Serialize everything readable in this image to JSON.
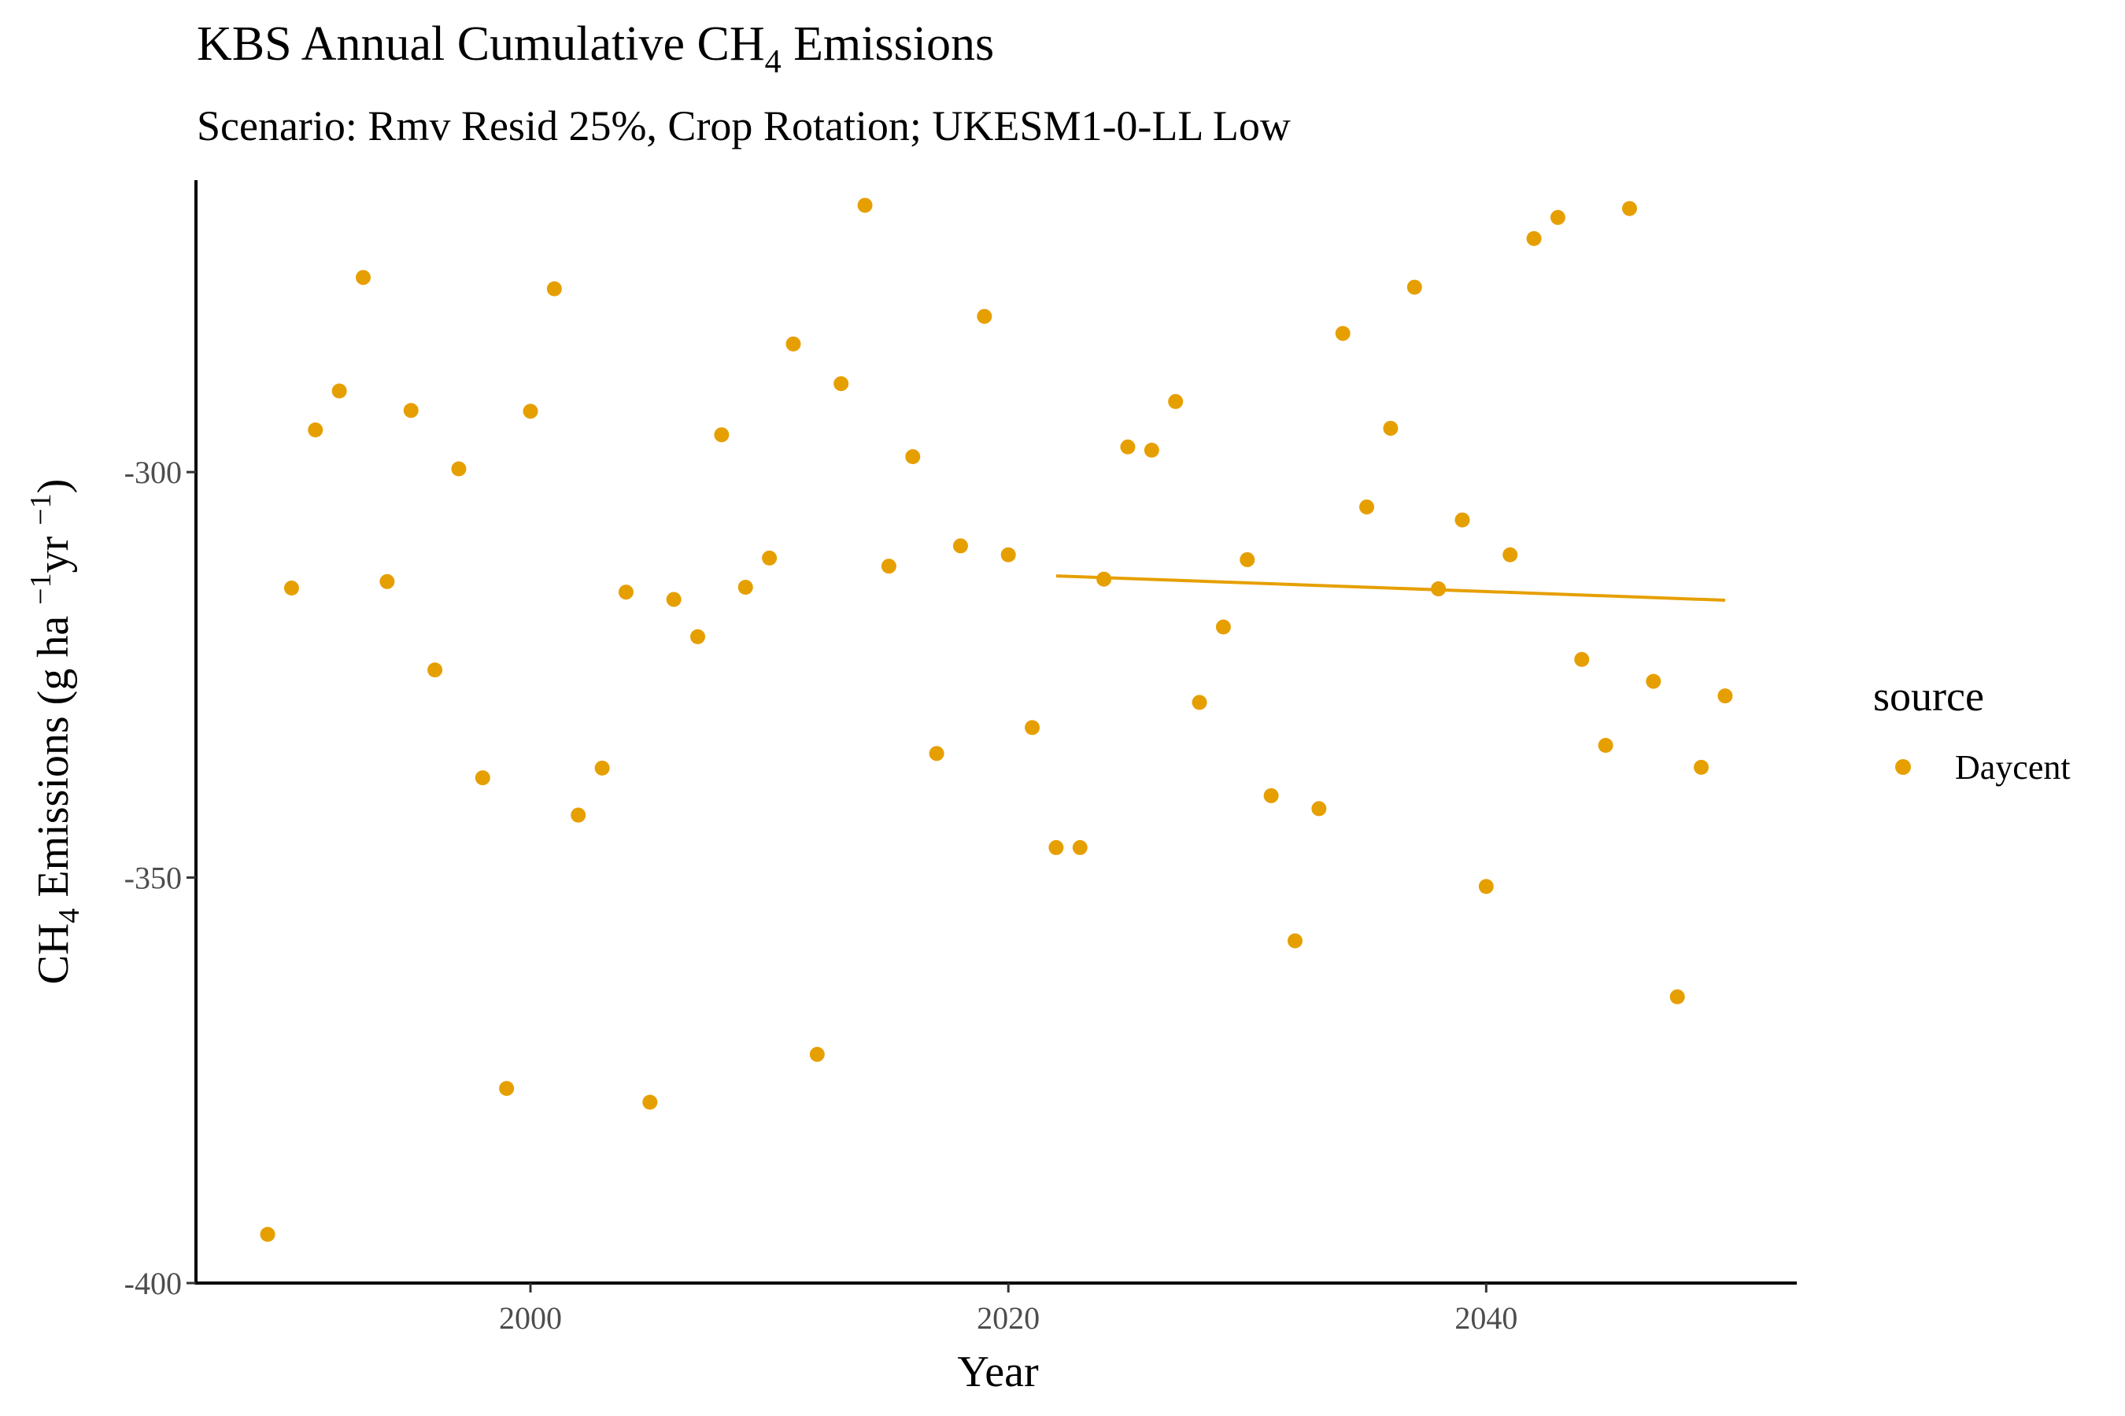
{
  "chart_data": {
    "type": "scatter",
    "title": {
      "prefix": "KBS Annual Cumulative CH",
      "subscript": "4",
      "suffix": " Emissions"
    },
    "subtitle": "Scenario: Rmv Resid 25%, Crop Rotation; UKESM1-0-LL Low",
    "xlabel": "Year",
    "ylabel": {
      "part1": "CH",
      "sub": "4",
      "part2": " Emissions (g ha ",
      "sup1": "−1",
      "part3": "yr ",
      "sup2": "−1",
      "part4": ")"
    },
    "xlim": [
      1986,
      2053
    ],
    "ylim": [
      -400,
      -264
    ],
    "xticks": [
      2000,
      2020,
      2040
    ],
    "yticks": [
      -400,
      -350,
      -300
    ],
    "ytick_labels": [
      "-400",
      "-350",
      "-300"
    ],
    "xtick_labels": [
      "2000",
      "2020",
      "2040"
    ],
    "grid": false,
    "legend": {
      "title": "source",
      "position": "right",
      "entries": [
        {
          "name": "Daycent",
          "color": "#E69F00"
        }
      ]
    },
    "series": [
      {
        "name": "Daycent",
        "color": "#E69F00",
        "x": [
          1989,
          1990,
          1991,
          1992,
          1993,
          1994,
          1995,
          1996,
          1997,
          1998,
          1999,
          2000,
          2001,
          2002,
          2003,
          2004,
          2005,
          2006,
          2007,
          2008,
          2009,
          2010,
          2011,
          2012,
          2013,
          2014,
          2015,
          2016,
          2017,
          2018,
          2019,
          2020,
          2021,
          2022,
          2023,
          2024,
          2025,
          2026,
          2027,
          2028,
          2029,
          2030,
          2031,
          2032,
          2033,
          2034,
          2035,
          2036,
          2037,
          2038,
          2039,
          2040,
          2041,
          2042,
          2043,
          2044,
          2045,
          2046,
          2047,
          2048,
          2049,
          2050
        ],
        "y": [
          -394,
          -314.3,
          -294.8,
          -290,
          -276,
          -313.5,
          -292.4,
          -324.4,
          -299.6,
          -337.7,
          -376,
          -292.5,
          -277.4,
          -342.3,
          -336.5,
          -314.8,
          -377.7,
          -315.7,
          -320.3,
          -295.4,
          -314.2,
          -310.6,
          -284.2,
          -371.8,
          -289.1,
          -267.1,
          -311.6,
          -298.1,
          -334.7,
          -309.1,
          -280.8,
          -310.2,
          -331.5,
          -346.3,
          -346.3,
          -313.2,
          -296.9,
          -297.3,
          -291.3,
          -328.4,
          -319.1,
          -310.8,
          -339.9,
          -357.8,
          -341.5,
          -282.9,
          -304.3,
          -294.6,
          -277.2,
          -314.4,
          -305.9,
          -351.1,
          -310.2,
          -271.2,
          -268.6,
          -323.1,
          -333.7,
          -267.5,
          -325.8,
          -364.7,
          -336.4,
          -327.6
        ]
      }
    ],
    "trend": {
      "name": "Daycent",
      "color": "#E69F00",
      "x": [
        2022,
        2050
      ],
      "y": [
        -312.8,
        -315.8
      ]
    }
  }
}
